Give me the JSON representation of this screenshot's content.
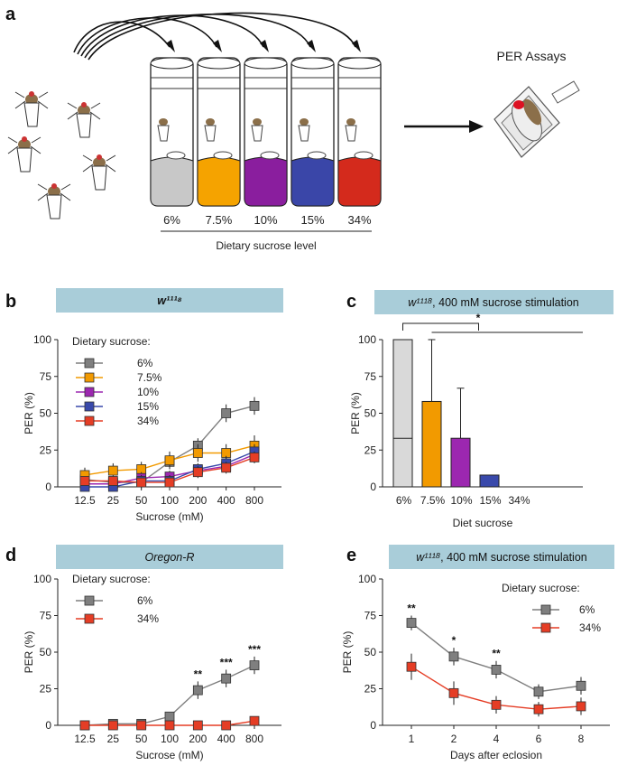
{
  "panel_a": {
    "label": "a",
    "sucrose_levels": [
      "6%",
      "7.5%",
      "10%",
      "15%",
      "34%"
    ],
    "axis_title": "Dietary sucrose level",
    "per_assays_title": "PER Assays",
    "vial_colors": [
      "#c8c8c8",
      "#f5a300",
      "#8a1e9e",
      "#3a46a8",
      "#d42a1c"
    ]
  },
  "panel_b": {
    "label": "b",
    "banner": "w¹¹¹⁸"
  },
  "panel_c": {
    "label": "c",
    "banner_genotype": "w¹¹¹⁸",
    "banner_rest": ", 400 mM sucrose stimulation",
    "sig_label": "*"
  },
  "panel_d": {
    "label": "d",
    "banner": "Oregon-R"
  },
  "panel_e": {
    "label": "e",
    "banner_genotype": "w¹¹¹⁸",
    "banner_rest": ", 400 mM sucrose stimulation"
  },
  "chart_data": [
    {
      "panel": "b",
      "type": "line",
      "categories": [
        "12.5",
        "25",
        "50",
        "100",
        "200",
        "400",
        "800"
      ],
      "xlabel": "Sucrose (mM)",
      "ylabel": "PER (%)",
      "ylim": [
        0,
        100
      ],
      "yticks": [
        "0",
        "25",
        "50",
        "75",
        "100"
      ],
      "legend_title": "Dietary sucrose:",
      "legend_position": "top-left",
      "series": [
        {
          "name": "6%",
          "color": "#7f7f7f",
          "values": [
            5,
            3,
            3,
            17,
            28,
            50,
            55
          ],
          "err": [
            5,
            4,
            4,
            5,
            5,
            6,
            6
          ]
        },
        {
          "name": "7.5%",
          "color": "#f29a00",
          "values": [
            8,
            11,
            12,
            18,
            23,
            23,
            28
          ],
          "err": [
            5,
            5,
            5,
            6,
            6,
            6,
            7
          ]
        },
        {
          "name": "10%",
          "color": "#9c27b0",
          "values": [
            2,
            2,
            6,
            7,
            11,
            14,
            22
          ],
          "err": [
            4,
            4,
            4,
            4,
            4,
            4,
            5
          ]
        },
        {
          "name": "15%",
          "color": "#3949ab",
          "values": [
            0,
            0,
            4,
            4,
            12,
            16,
            24
          ],
          "err": [
            3,
            3,
            4,
            4,
            4,
            5,
            5
          ]
        },
        {
          "name": "34%",
          "color": "#e53d25",
          "values": [
            4,
            4,
            3,
            3,
            10,
            13,
            20
          ],
          "err": [
            3,
            3,
            3,
            3,
            4,
            4,
            4
          ]
        }
      ]
    },
    {
      "panel": "c",
      "type": "bar",
      "categories": [
        "6%",
        "7.5%",
        "10%",
        "15%",
        "34%"
      ],
      "values": [
        100,
        58,
        33,
        8,
        0
      ],
      "err_upper": [
        0,
        100,
        67,
        8,
        0
      ],
      "inner_line": [
        33,
        null,
        null,
        null,
        null
      ],
      "colors": [
        "#d9d9d9",
        "#f29a00",
        "#9c27b0",
        "#3949ab",
        "#cccccc"
      ],
      "xlabel": "Diet sucrose",
      "ylabel": "PER (%)",
      "ylim": [
        0,
        100
      ],
      "yticks": [
        "0",
        "25",
        "50",
        "75",
        "100"
      ]
    },
    {
      "panel": "d",
      "type": "line",
      "categories": [
        "12.5",
        "25",
        "50",
        "100",
        "200",
        "400",
        "800"
      ],
      "xlabel": "Sucrose (mM)",
      "ylabel": "PER (%)",
      "ylim": [
        0,
        100
      ],
      "yticks": [
        "0",
        "25",
        "50",
        "75",
        "100"
      ],
      "legend_title": "Dietary sucrose:",
      "legend_position": "top-left",
      "significance": [
        "",
        "",
        "",
        "",
        "**",
        "***",
        "***"
      ],
      "series": [
        {
          "name": "6%",
          "color": "#7f7f7f",
          "values": [
            0,
            1,
            1,
            6,
            24,
            32,
            41
          ],
          "err": [
            0,
            1,
            1,
            2,
            6,
            6,
            6
          ]
        },
        {
          "name": "34%",
          "color": "#e53d25",
          "values": [
            0,
            0,
            0,
            0,
            0,
            0,
            3
          ],
          "err": [
            0,
            0,
            0,
            0,
            0,
            0,
            1
          ]
        }
      ]
    },
    {
      "panel": "e",
      "type": "line",
      "categories": [
        "1",
        "2",
        "4",
        "6",
        "8"
      ],
      "xlabel": "Days after eclosion",
      "ylabel": "PER (%)",
      "ylim": [
        0,
        100
      ],
      "yticks": [
        "0",
        "25",
        "50",
        "75",
        "100"
      ],
      "legend_title": "Dietary sucrose:",
      "legend_position": "top-right",
      "significance": [
        "**",
        "*",
        "**",
        "",
        ""
      ],
      "series": [
        {
          "name": "6%",
          "color": "#7f7f7f",
          "values": [
            70,
            47,
            38,
            23,
            27
          ],
          "err": [
            5,
            6,
            6,
            5,
            6
          ]
        },
        {
          "name": "34%",
          "color": "#e53d25",
          "values": [
            40,
            22,
            14,
            11,
            13
          ],
          "err": [
            9,
            8,
            6,
            5,
            6
          ]
        }
      ]
    }
  ]
}
